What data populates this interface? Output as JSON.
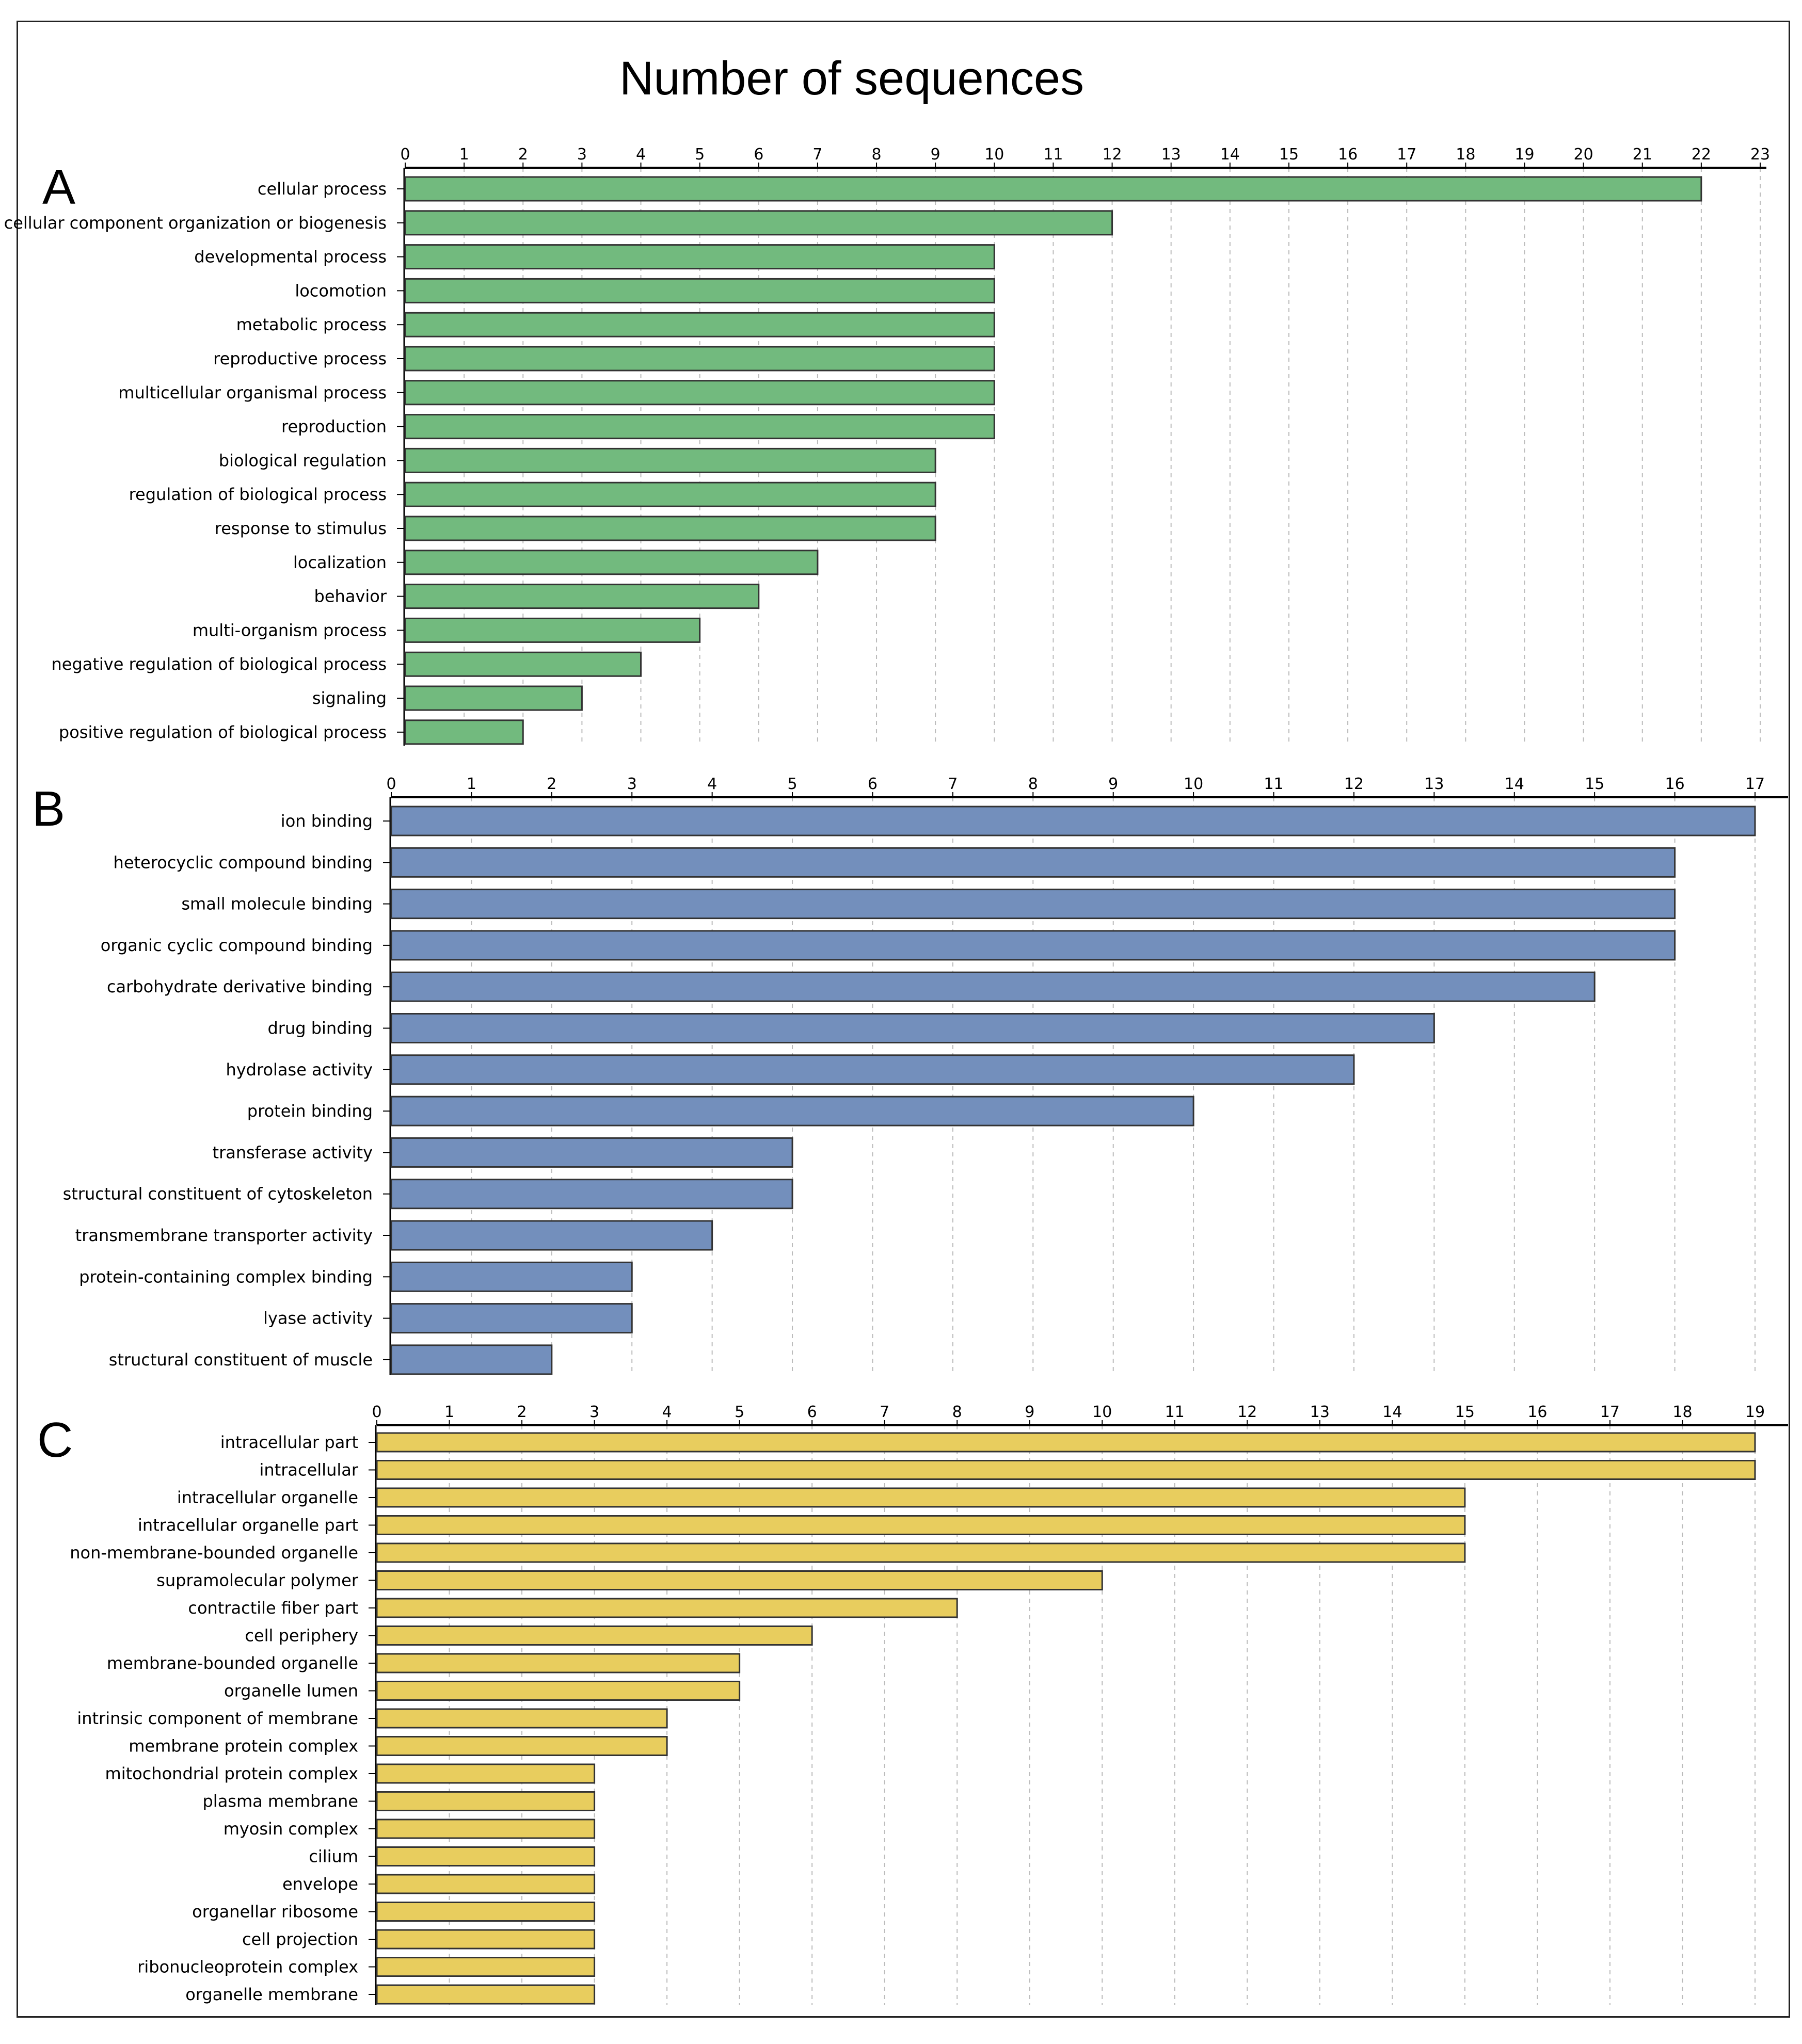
{
  "title": "Number of sequences",
  "colors": {
    "A": "#72ba7e",
    "B": "#738fbc",
    "C": "#e8cd5e",
    "stroke": "#333333",
    "grid": "#bbbbbb"
  },
  "chart_data": [
    {
      "type": "bar",
      "orientation": "horizontal",
      "panel": "A",
      "xlabel": "Number of sequences",
      "xlim": [
        0,
        23
      ],
      "xticks": [
        "0",
        "1",
        "2",
        "3",
        "4",
        "5",
        "6",
        "7",
        "8",
        "9",
        "10",
        "11",
        "12",
        "13",
        "14",
        "15",
        "16",
        "17",
        "18",
        "19",
        "20",
        "21",
        "22",
        "23"
      ],
      "categories": [
        "cellular process",
        "cellular component organization or biogenesis",
        "developmental process",
        "locomotion",
        "metabolic process",
        "reproductive process",
        "multicellular organismal process",
        "reproduction",
        "biological regulation",
        "regulation of biological process",
        "response to stimulus",
        "localization",
        "behavior",
        "multi-organism process",
        "negative regulation of biological process",
        "signaling",
        "positive regulation of biological process"
      ],
      "values": [
        22,
        12,
        10,
        10,
        10,
        10,
        10,
        10,
        9,
        9,
        9,
        7,
        6,
        5,
        4,
        3,
        2
      ],
      "grid": true
    },
    {
      "type": "bar",
      "orientation": "horizontal",
      "panel": "B",
      "xlim": [
        0,
        17
      ],
      "xticks": [
        "0",
        "1",
        "2",
        "3",
        "4",
        "5",
        "6",
        "7",
        "8",
        "9",
        "10",
        "11",
        "12",
        "13",
        "14",
        "15",
        "16",
        "17"
      ],
      "categories": [
        "ion binding",
        "heterocyclic compound binding",
        "small molecule binding",
        "organic cyclic compound binding",
        "carbohydrate derivative binding",
        "drug binding",
        "hydrolase activity",
        "protein binding",
        "transferase activity",
        "structural constituent of cytoskeleton",
        "transmembrane transporter activity",
        "protein-containing complex binding",
        "lyase activity",
        "structural constituent of muscle"
      ],
      "values": [
        17,
        16,
        16,
        16,
        15,
        13,
        12,
        10,
        5,
        5,
        4,
        3,
        3,
        2
      ],
      "grid": true
    },
    {
      "type": "bar",
      "orientation": "horizontal",
      "panel": "C",
      "xlim": [
        0,
        19
      ],
      "xticks": [
        "0",
        "1",
        "2",
        "3",
        "4",
        "5",
        "6",
        "7",
        "8",
        "9",
        "10",
        "11",
        "12",
        "13",
        "14",
        "15",
        "16",
        "17",
        "18",
        "19"
      ],
      "categories": [
        "intracellular part",
        "intracellular",
        "intracellular organelle",
        "intracellular organelle part",
        "non-membrane-bounded organelle",
        "supramolecular polymer",
        "contractile fiber part",
        "cell periphery",
        "membrane-bounded organelle",
        "organelle lumen",
        "intrinsic component of membrane",
        "membrane protein complex",
        "mitochondrial protein complex",
        "plasma membrane",
        "myosin complex",
        "cilium",
        "envelope",
        "organellar ribosome",
        "cell projection",
        "ribonucleoprotein complex",
        "organelle membrane"
      ],
      "values": [
        19,
        19,
        15,
        15,
        15,
        10,
        8,
        6,
        5,
        5,
        4,
        4,
        3,
        3,
        3,
        3,
        3,
        3,
        3,
        3,
        3
      ],
      "grid": true
    }
  ]
}
